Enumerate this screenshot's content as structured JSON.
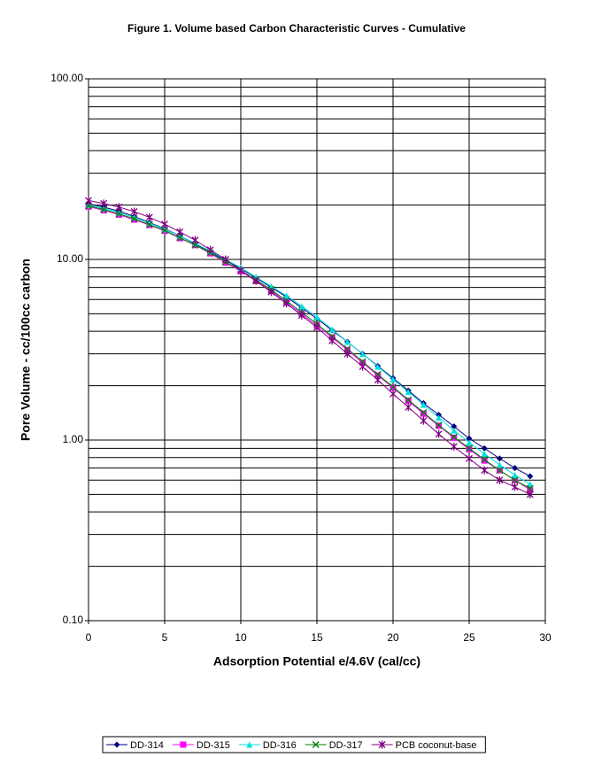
{
  "chart_data": {
    "type": "line",
    "title": "Figure 1. Volume based Carbon Characteristic Curves - Cumulative",
    "x_label": "Adsorption Potential e/4.6V (cal/cc)",
    "y_label": "Pore Volume - cc/100cc carbon",
    "x": [
      0,
      1,
      2,
      3,
      4,
      5,
      6,
      7,
      8,
      9,
      10,
      11,
      12,
      13,
      14,
      15,
      16,
      17,
      18,
      19,
      20,
      21,
      22,
      23,
      24,
      25,
      26,
      27,
      28,
      29
    ],
    "series": [
      {
        "name": "DD-314",
        "color": "#000080",
        "marker": "diamond",
        "values": [
          20.3,
          19.5,
          18.5,
          17.3,
          16.0,
          14.8,
          13.5,
          12.2,
          11.0,
          9.9,
          8.9,
          7.9,
          7.0,
          6.2,
          5.4,
          4.7,
          4.05,
          3.5,
          3.0,
          2.57,
          2.2,
          1.88,
          1.6,
          1.38,
          1.19,
          1.02,
          0.9,
          0.79,
          0.7,
          0.63
        ]
      },
      {
        "name": "DD-315",
        "color": "#ff00ff",
        "marker": "square",
        "values": [
          19.6,
          18.7,
          17.7,
          16.6,
          15.5,
          14.4,
          13.1,
          12.0,
          10.8,
          9.6,
          8.6,
          7.6,
          6.7,
          5.8,
          5.0,
          4.3,
          3.7,
          3.15,
          2.68,
          2.28,
          1.95,
          1.65,
          1.4,
          1.2,
          1.03,
          0.89,
          0.77,
          0.68,
          0.6,
          0.53
        ]
      },
      {
        "name": "DD-316",
        "color": "#00e0e0",
        "marker": "triangle",
        "values": [
          20.0,
          19.2,
          18.2,
          17.1,
          15.9,
          14.7,
          13.5,
          12.3,
          11.1,
          10.0,
          9.0,
          8.0,
          7.1,
          6.3,
          5.5,
          4.8,
          4.1,
          3.5,
          3.0,
          2.55,
          2.17,
          1.85,
          1.57,
          1.33,
          1.13,
          0.97,
          0.84,
          0.73,
          0.64,
          0.57
        ]
      },
      {
        "name": "DD-317",
        "color": "#008000",
        "marker": "x",
        "values": [
          19.8,
          18.9,
          17.9,
          16.8,
          15.6,
          14.5,
          13.2,
          12.0,
          10.9,
          9.7,
          8.7,
          7.7,
          6.8,
          5.9,
          5.1,
          4.4,
          3.75,
          3.2,
          2.72,
          2.31,
          1.97,
          1.67,
          1.42,
          1.21,
          1.04,
          0.9,
          0.78,
          0.68,
          0.6,
          0.54
        ]
      },
      {
        "name": "PCB coconut-base",
        "color": "#800080",
        "marker": "star",
        "values": [
          21.2,
          20.4,
          19.5,
          18.4,
          17.1,
          15.7,
          14.2,
          12.8,
          11.3,
          10.0,
          8.7,
          7.6,
          6.6,
          5.7,
          4.9,
          4.2,
          3.55,
          3.0,
          2.55,
          2.15,
          1.8,
          1.52,
          1.28,
          1.08,
          0.92,
          0.79,
          0.68,
          0.6,
          0.55,
          0.5
        ]
      }
    ],
    "xlim": [
      0,
      30
    ],
    "xticks": [
      0,
      5,
      10,
      15,
      20,
      25,
      30
    ],
    "ylim": [
      0.1,
      100
    ],
    "log_y": true,
    "yticks": [
      {
        "value": 0.1,
        "label": "0.10"
      },
      {
        "value": 1,
        "label": "1.00"
      },
      {
        "value": 10,
        "label": "10.00"
      },
      {
        "value": 100,
        "label": "100.00"
      }
    ],
    "grid": true,
    "minor_grid": true,
    "legend": "bottom"
  }
}
